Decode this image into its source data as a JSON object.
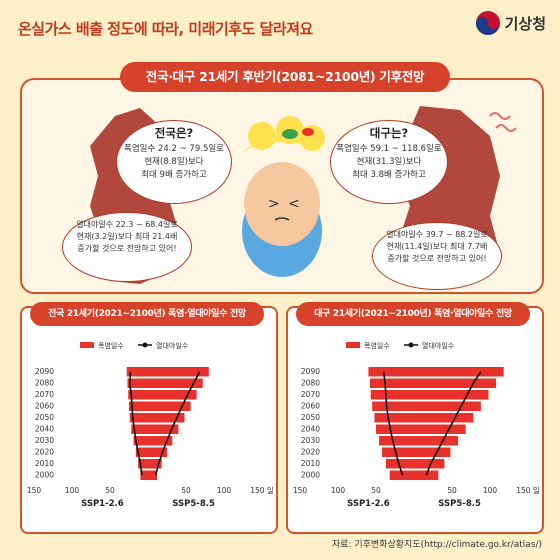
{
  "header": {
    "title": "온실가스 배출 정도에 따라, 미래기후도 달라져요",
    "logo_text": "기상청"
  },
  "top": {
    "banner": "전국·대구 21세기 후반기(2081~2100년) 기후전망",
    "nation": {
      "title": "전국은?",
      "line1": "폭염일수 24.2 ~ 79.5일로",
      "line2": "현재(8.8일)보다",
      "line3": "최대 9배 증가하고"
    },
    "nation_night": {
      "line1": "열대야일수 22.3 ~ 68.4일로",
      "line2": "현재(3.2일)보다 최대 21.4배",
      "line3": "증가할 것으로 전망하고 있어!"
    },
    "daegu": {
      "title": "대구는?",
      "line1": "폭염일수 59.1 ~ 118.6일로",
      "line2": "현재(31.3일)보다",
      "line3": "최대 3.8배 증가하고"
    },
    "daegu_night": {
      "line1": "열대야일수 39.7 ~ 88.2일로",
      "line2": "현재(11.4일)보다 최대 7.7배",
      "line3": "증가할 것으로 전망하고 있어!"
    }
  },
  "colors": {
    "bar": "#e8312a",
    "line": "#111111",
    "accent": "#d6432a",
    "map": "#b2473d"
  },
  "chart_data": [
    {
      "type": "bar",
      "title": "전국 21세기(2021~2100년) 폭염·열대야일수 전망",
      "legend": [
        "폭염일수",
        "열대야일수"
      ],
      "years": [
        "2090",
        "2080",
        "2070",
        "2060",
        "2050",
        "2040",
        "2030",
        "2020",
        "2010",
        "2000"
      ],
      "x_ticks": [
        "150",
        "100",
        "50",
        "",
        "50",
        "100",
        "150 일"
      ],
      "scenarios": [
        "SSP1-2.6",
        "SSP5-8.5"
      ],
      "xlim": [
        -150,
        150
      ],
      "series": [
        {
          "name": "폭염일수",
          "ssp126": [
            28,
            27,
            26,
            25,
            24,
            22,
            19,
            16,
            13,
            10
          ],
          "ssp585": [
            80,
            72,
            64,
            56,
            48,
            40,
            32,
            25,
            18,
            12
          ]
        },
        {
          "name": "열대야일수",
          "ssp126": [
            23,
            24,
            22,
            21,
            20,
            18,
            16,
            13,
            10,
            8
          ],
          "ssp585": [
            68,
            60,
            52,
            45,
            38,
            31,
            25,
            19,
            14,
            10
          ]
        }
      ]
    },
    {
      "type": "bar",
      "title": "대구 21세기(2021~2100년) 폭염·열대야일수 전망",
      "legend": [
        "폭염일수",
        "열대야일수"
      ],
      "years": [
        "2090",
        "2080",
        "2070",
        "2060",
        "2050",
        "2040",
        "2030",
        "2020",
        "2010",
        "2000"
      ],
      "x_ticks": [
        "150",
        "100",
        "50",
        "",
        "50",
        "100",
        "150 일"
      ],
      "scenarios": [
        "SSP1-2.6",
        "SSP5-8.5"
      ],
      "xlim": [
        -150,
        150
      ],
      "series": [
        {
          "name": "폭염일수",
          "ssp126": [
            60,
            58,
            57,
            55,
            52,
            50,
            46,
            42,
            37,
            32
          ],
          "ssp585": [
            118,
            108,
            98,
            88,
            78,
            68,
            58,
            48,
            40,
            32
          ]
        },
        {
          "name": "열대야일수",
          "ssp126": [
            40,
            38,
            37,
            36,
            34,
            31,
            28,
            24,
            20,
            15
          ],
          "ssp585": [
            88,
            78,
            70,
            62,
            54,
            46,
            38,
            30,
            22,
            16
          ]
        }
      ]
    }
  ],
  "source": "자료: 기후변화상황지도(http://climate.go.kr/atlas/)"
}
